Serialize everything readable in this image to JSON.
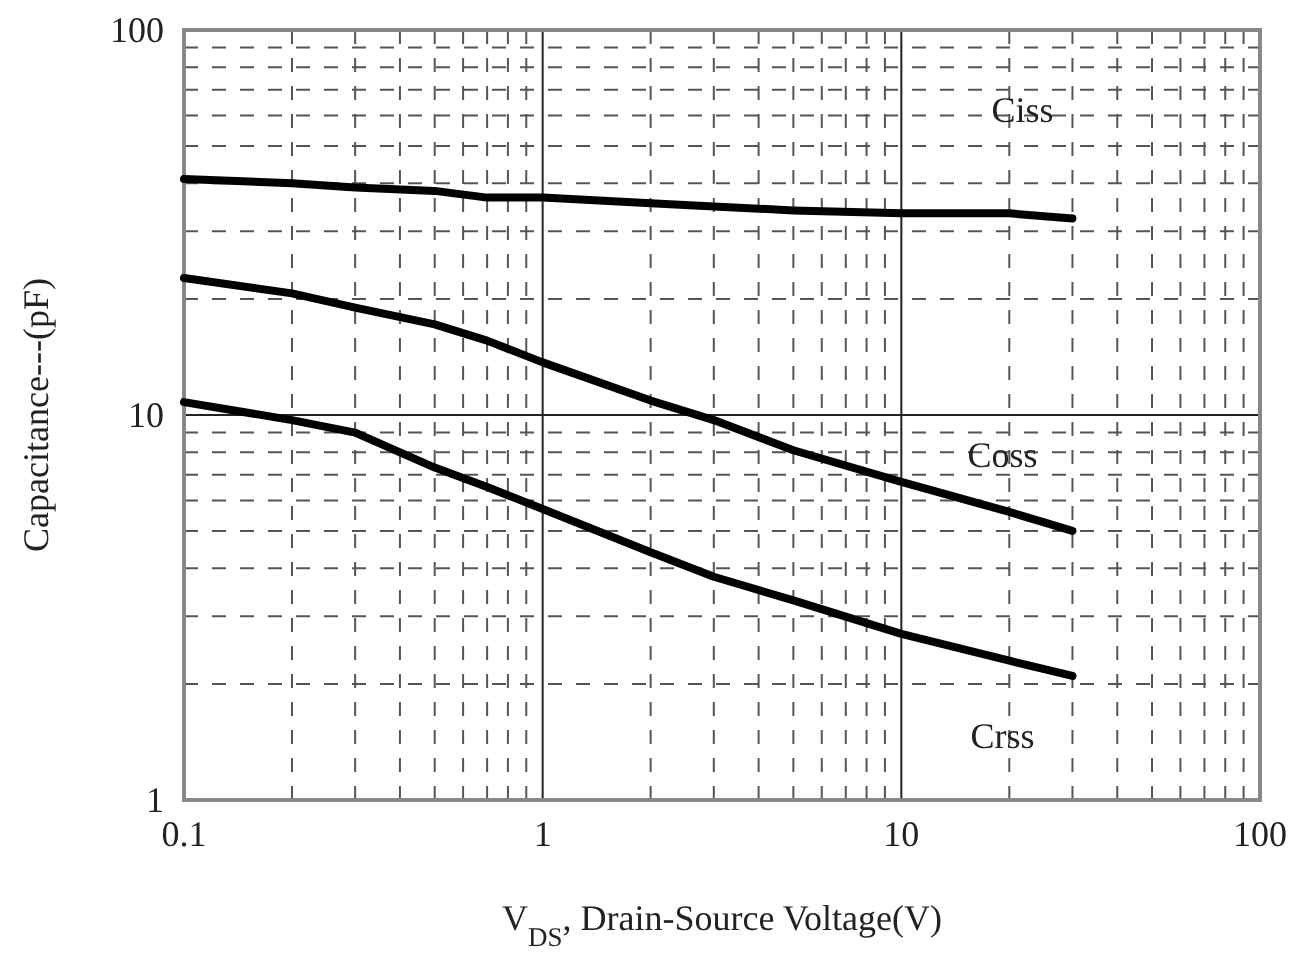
{
  "chart_data": {
    "type": "line",
    "xlabel": "V$_{DS}$, Drain-Source Voltage(V)",
    "ylabel": "Capacitance---(pF)",
    "log": "xy",
    "grid": true,
    "xlim": [
      0.1,
      100
    ],
    "ylim": [
      1,
      100
    ],
    "xticks": [
      0.1,
      {
        "value": 0.2,
        "label": null
      },
      {
        "value": 0.3,
        "label": null
      },
      {
        "value": 0.4,
        "label": null
      },
      {
        "value": 0.5,
        "label": null
      },
      {
        "value": 0.6,
        "label": null
      },
      {
        "value": 0.7,
        "label": null
      },
      {
        "value": 0.8,
        "label": null
      },
      {
        "value": 0.9,
        "label": null
      },
      1,
      {
        "value": 2,
        "label": null
      },
      {
        "value": 3,
        "label": null
      },
      {
        "value": 4,
        "label": null
      },
      {
        "value": 5,
        "label": null
      },
      {
        "value": 6,
        "label": null
      },
      {
        "value": 7,
        "label": null
      },
      {
        "value": 8,
        "label": null
      },
      {
        "value": 9,
        "label": null
      },
      10,
      {
        "value": 20,
        "label": null
      },
      {
        "value": 30,
        "label": null
      },
      {
        "value": 40,
        "label": null
      },
      {
        "value": 50,
        "label": null
      },
      {
        "value": 60,
        "label": null
      },
      {
        "value": 70,
        "label": null
      },
      {
        "value": 80,
        "label": null
      },
      {
        "value": 90,
        "label": null
      },
      100
    ],
    "yticks": [
      1,
      {
        "value": 2,
        "label": null
      },
      {
        "value": 3,
        "label": null
      },
      {
        "value": 4,
        "label": null
      },
      {
        "value": 5,
        "label": null
      },
      {
        "value": 6,
        "label": null
      },
      {
        "value": 7,
        "label": null
      },
      {
        "value": 8,
        "label": null
      },
      {
        "value": 9,
        "label": null
      },
      10,
      {
        "value": 20,
        "label": null
      },
      {
        "value": 30,
        "label": null
      },
      {
        "value": 40,
        "label": null
      },
      {
        "value": 50,
        "label": null
      },
      {
        "value": 60,
        "label": null
      },
      {
        "value": 70,
        "label": null
      },
      {
        "value": 80,
        "label": null
      },
      {
        "value": 90,
        "label": null
      },
      100
    ],
    "x": [
      0.1,
      0.2,
      0.3,
      0.5,
      0.7,
      1,
      2,
      3,
      5,
      10,
      20,
      30
    ],
    "series": [
      {
        "name": "Ciss",
        "color": "#000000",
        "values": [
          41,
          40,
          39,
          38.2,
          36.7,
          36.7,
          35.5,
          34.8,
          34,
          33.4,
          33.4,
          32.4
        ]
      },
      {
        "name": "Coss",
        "color": "#000000",
        "values": [
          22.7,
          20.7,
          19,
          17.2,
          15.6,
          13.7,
          10.9,
          9.7,
          8.1,
          6.7,
          5.6,
          5
        ]
      },
      {
        "name": "Crss",
        "color": "#000000",
        "values": [
          10.8,
          9.7,
          9,
          7.3,
          6.5,
          5.7,
          4.4,
          3.8,
          3.3,
          2.7,
          2.3,
          2.1
        ]
      }
    ]
  }
}
